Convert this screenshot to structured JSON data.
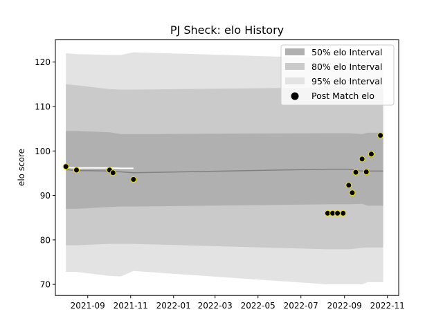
{
  "chart_data": {
    "type": "line",
    "title": "PJ Sheck: elo History",
    "xlabel": "",
    "ylabel": "elo score",
    "xlim": [
      "2021-07-17",
      "2022-11-17"
    ],
    "ylim": [
      67.5,
      125
    ],
    "x_ticks": [
      "2021-09",
      "2021-11",
      "2022-01",
      "2022-03",
      "2022-05",
      "2022-07",
      "2022-09",
      "2022-11"
    ],
    "y_ticks": [
      70,
      80,
      90,
      100,
      110,
      120
    ],
    "grid": false,
    "legend": {
      "placement": "top-right",
      "entries": [
        "50% elo Interval",
        "80% elo Interval",
        "95% elo Interval",
        "Post Match elo"
      ]
    },
    "colors": {
      "band50": "#b0b0b0",
      "band80": "#cacaca",
      "band95": "#e3e3e3",
      "mean_line": "#808080",
      "marker_fill": "#000000",
      "marker_edge": "#f0e000"
    },
    "bands": {
      "x": [
        "2021-08-01",
        "2021-08-16",
        "2021-10-02",
        "2021-10-18",
        "2021-11-05",
        "2022-08-08",
        "2022-09-07",
        "2022-09-26",
        "2022-10-04",
        "2022-10-26"
      ],
      "mean": [
        95.8,
        95.6,
        95.5,
        95.3,
        95.1,
        95.9,
        95.9,
        95.5,
        95.5,
        95.5
      ],
      "p50_low": [
        87.0,
        87.0,
        87.4,
        87.5,
        87.5,
        88.0,
        88.0,
        88.1,
        87.7,
        87.7
      ],
      "p50_high": [
        104.5,
        104.5,
        104.2,
        103.8,
        103.8,
        104.0,
        104.0,
        103.8,
        104.1,
        104.1
      ],
      "p80_low": [
        78.8,
        78.8,
        79.1,
        79.1,
        79.1,
        77.9,
        77.9,
        78.2,
        78.3,
        78.3
      ],
      "p80_high": [
        115.0,
        114.8,
        113.9,
        113.8,
        113.8,
        114.3,
        114.3,
        114.0,
        114.0,
        114.0
      ],
      "p95_low": [
        72.8,
        72.8,
        71.9,
        71.8,
        73.0,
        70.0,
        70.0,
        70.0,
        70.5,
        70.5
      ],
      "p95_high": [
        122.0,
        121.8,
        121.6,
        121.6,
        122.2,
        120.9,
        120.9,
        120.9,
        120.9,
        120.9
      ]
    },
    "post_match_line": {
      "x": [
        "2021-08-01",
        "2021-08-16",
        "2021-10-02",
        "2021-10-18",
        "2021-11-05"
      ],
      "y": [
        96.3,
        96.2,
        96.2,
        96.1,
        96.1
      ]
    },
    "series": [
      {
        "name": "Post Match elo",
        "points": [
          {
            "x": "2021-08-01",
            "y": 96.5
          },
          {
            "x": "2021-08-16",
            "y": 95.7
          },
          {
            "x": "2021-10-02",
            "y": 95.7
          },
          {
            "x": "2021-10-07",
            "y": 95.1
          },
          {
            "x": "2021-11-05",
            "y": 93.6
          },
          {
            "x": "2022-08-08",
            "y": 86.0
          },
          {
            "x": "2022-08-15",
            "y": 86.0
          },
          {
            "x": "2022-08-22",
            "y": 86.0
          },
          {
            "x": "2022-08-30",
            "y": 86.0
          },
          {
            "x": "2022-09-07",
            "y": 92.3
          },
          {
            "x": "2022-09-12",
            "y": 90.6
          },
          {
            "x": "2022-09-17",
            "y": 95.2
          },
          {
            "x": "2022-09-26",
            "y": 98.2
          },
          {
            "x": "2022-10-02",
            "y": 95.3
          },
          {
            "x": "2022-10-09",
            "y": 99.3
          },
          {
            "x": "2022-10-22",
            "y": 103.5
          }
        ]
      }
    ]
  }
}
